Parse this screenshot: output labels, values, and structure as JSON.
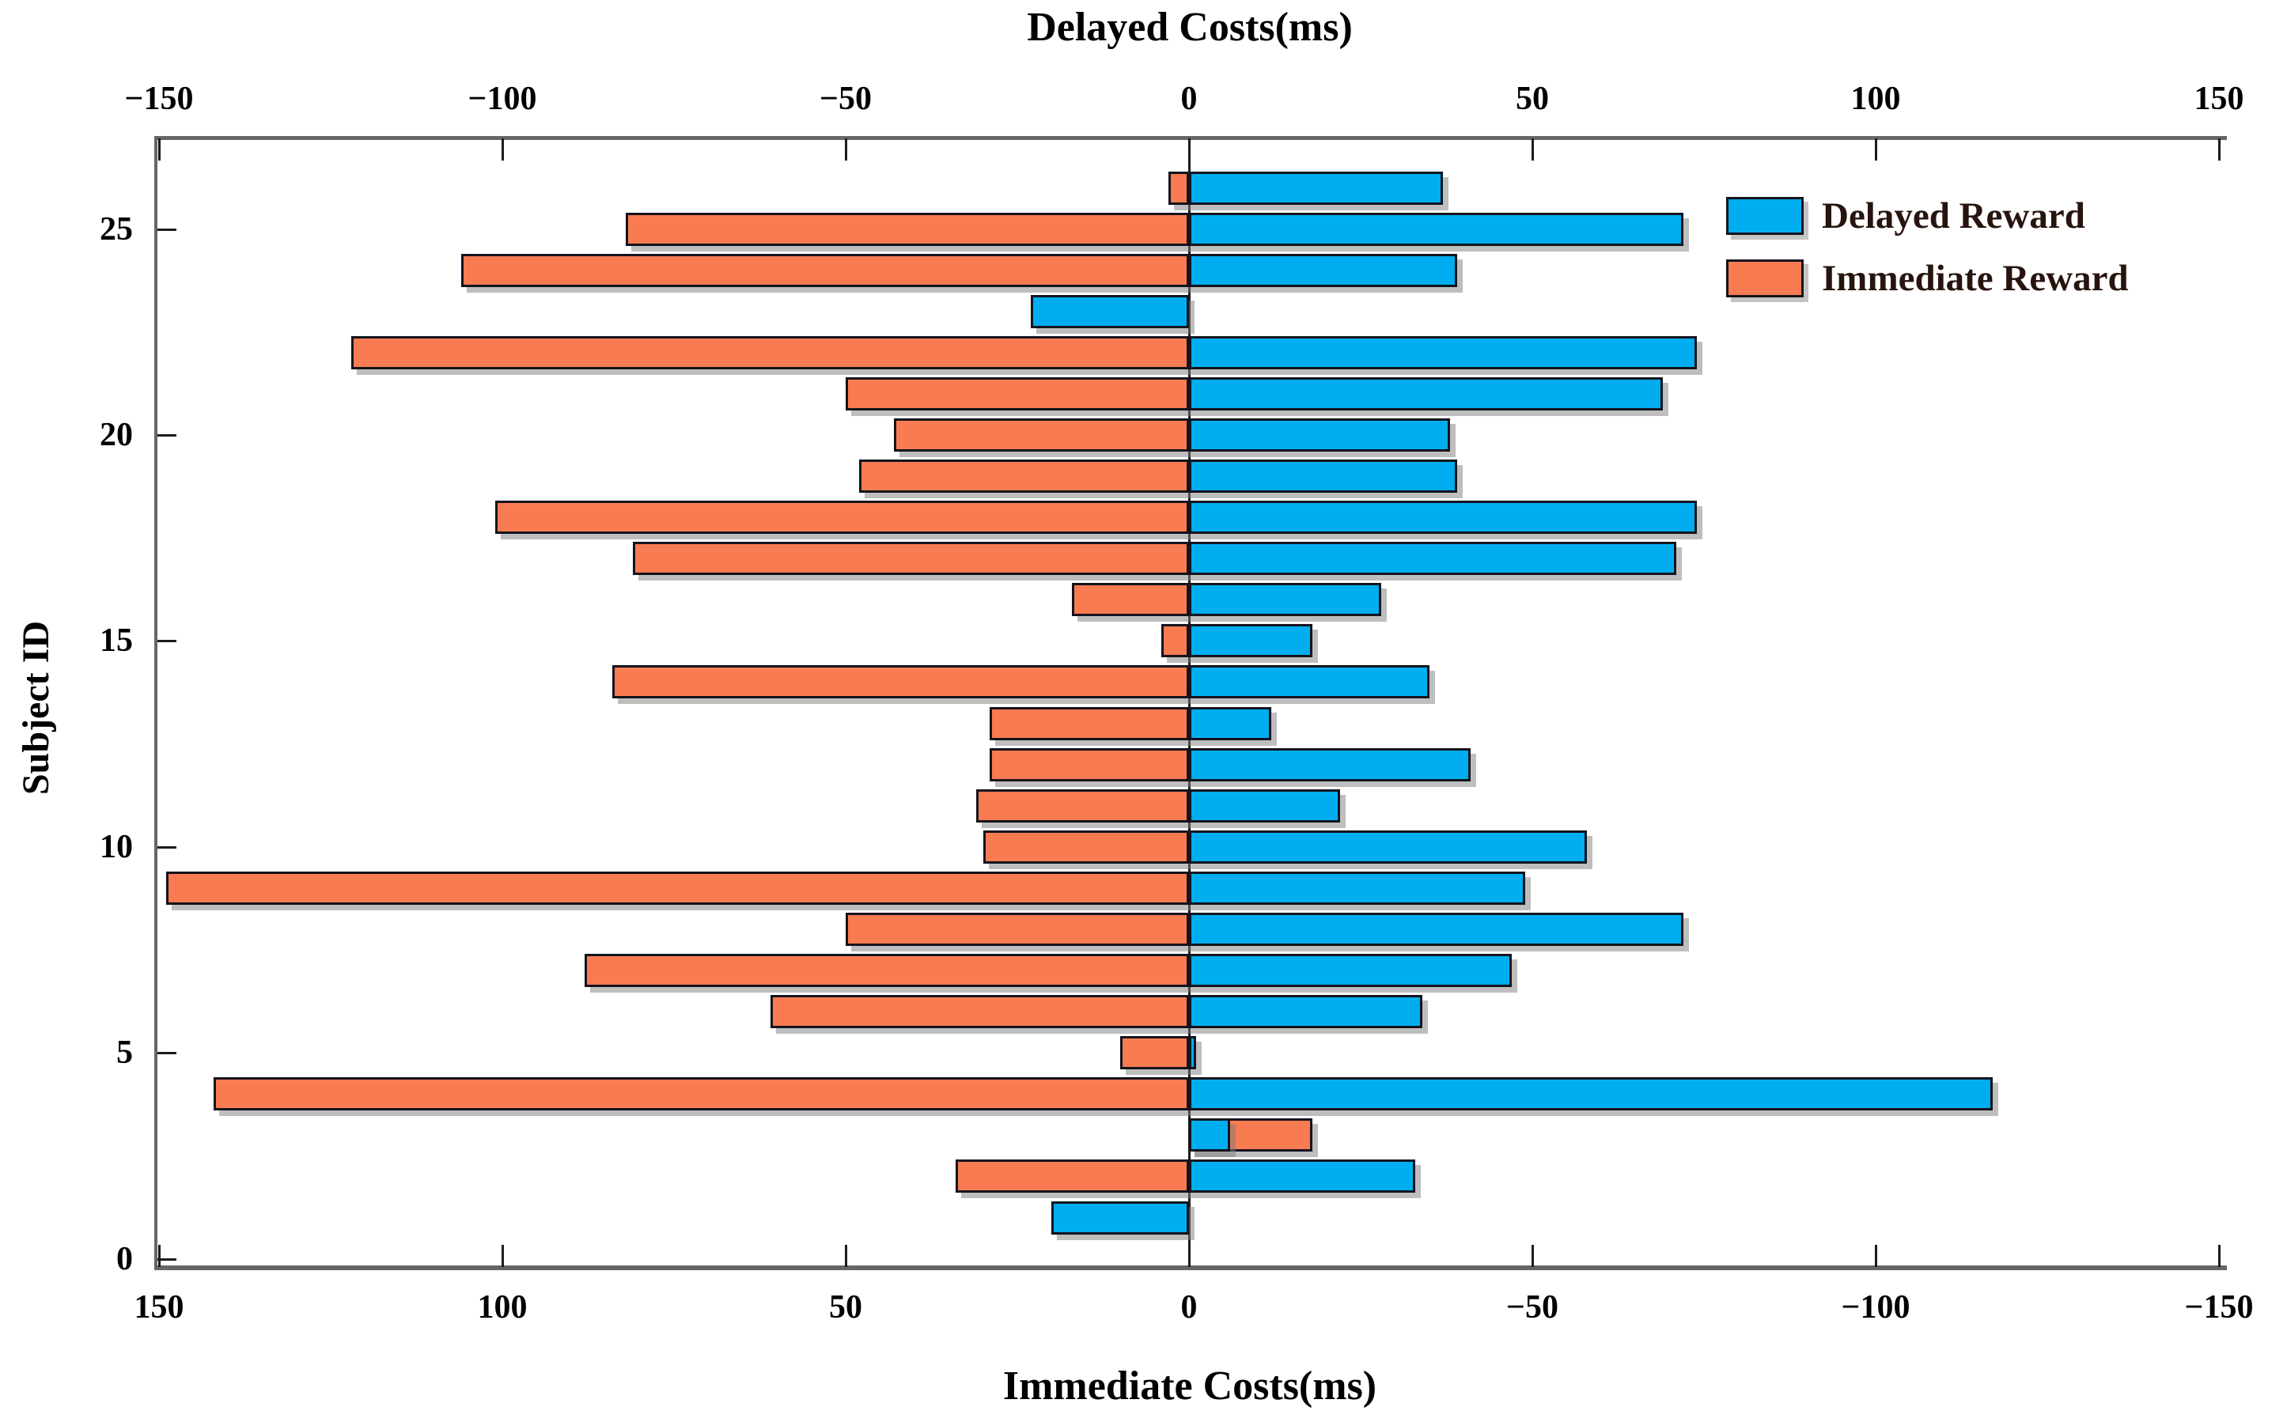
{
  "top_axis_title": "Delayed Costs(ms)",
  "bottom_axis_title": "Immediate Costs(ms)",
  "y_axis_title": "Subject ID",
  "legend": [
    {
      "label": "Delayed Reward",
      "series": "delayed"
    },
    {
      "label": "Immediate Reward",
      "series": "immediate"
    }
  ],
  "colors": {
    "delayed": "#00AEEF",
    "immediate": "#F97B51",
    "bar_outline": "#14141e",
    "axis_spine": "#666666",
    "tick_and_zero_line": "#1c1c1c",
    "legend_text": "#27140e",
    "axis_text": "#000000"
  },
  "axes": {
    "top_ticks": [
      {
        "value": -150,
        "label": "−150"
      },
      {
        "value": -100,
        "label": "−100"
      },
      {
        "value": -50,
        "label": "−50"
      },
      {
        "value": 0,
        "label": "0"
      },
      {
        "value": 50,
        "label": "50"
      },
      {
        "value": 100,
        "label": "100"
      },
      {
        "value": 150,
        "label": "150"
      }
    ],
    "bottom_ticks": [
      {
        "value": -150,
        "label": "150"
      },
      {
        "value": -100,
        "label": "100"
      },
      {
        "value": -50,
        "label": "50"
      },
      {
        "value": 0,
        "label": "0"
      },
      {
        "value": 50,
        "label": "−50"
      },
      {
        "value": 100,
        "label": "−100"
      },
      {
        "value": 150,
        "label": "−150"
      }
    ],
    "y_ticks": [
      {
        "value": 0,
        "label": "0"
      },
      {
        "value": 5,
        "label": "5"
      },
      {
        "value": 10,
        "label": "10"
      },
      {
        "value": 15,
        "label": "15"
      },
      {
        "value": 20,
        "label": "20"
      },
      {
        "value": 25,
        "label": "25"
      }
    ]
  },
  "chart_data": {
    "type": "bar",
    "orientation": "horizontal-diverging",
    "title": "",
    "xlabel_top": "Delayed Costs(ms)",
    "xlabel_bottom": "Immediate Costs(ms)",
    "ylabel": "Subject ID",
    "xlim_top_axis": [
      -150,
      150
    ],
    "ylim": [
      0,
      27.2
    ],
    "bar_height_units": 0.8,
    "grid": false,
    "legend_position": "upper-right-inside",
    "sign_convention": "delayed_cost_ms read on top axis (positive bars extend right); immediate_cost_ms read on reversed bottom axis (positive bars extend left of the zero line); values in ms, estimated from pixels",
    "series": [
      {
        "name": "Delayed Reward",
        "color": "#00AEEF"
      },
      {
        "name": "Immediate Reward",
        "color": "#F97B51"
      }
    ],
    "subjects": [
      {
        "id": 1,
        "delayed_cost_ms": -20,
        "immediate_cost_ms": 0
      },
      {
        "id": 2,
        "delayed_cost_ms": 33,
        "immediate_cost_ms": 34
      },
      {
        "id": 3,
        "delayed_cost_ms": 6,
        "immediate_cost_ms": -18
      },
      {
        "id": 4,
        "delayed_cost_ms": 117,
        "immediate_cost_ms": 142
      },
      {
        "id": 5,
        "delayed_cost_ms": 1,
        "immediate_cost_ms": 10
      },
      {
        "id": 6,
        "delayed_cost_ms": 34,
        "immediate_cost_ms": 61
      },
      {
        "id": 7,
        "delayed_cost_ms": 47,
        "immediate_cost_ms": 88
      },
      {
        "id": 8,
        "delayed_cost_ms": 72,
        "immediate_cost_ms": 50
      },
      {
        "id": 9,
        "delayed_cost_ms": 49,
        "immediate_cost_ms": 149
      },
      {
        "id": 10,
        "delayed_cost_ms": 58,
        "immediate_cost_ms": 30
      },
      {
        "id": 11,
        "delayed_cost_ms": 22,
        "immediate_cost_ms": 31
      },
      {
        "id": 12,
        "delayed_cost_ms": 41,
        "immediate_cost_ms": 29
      },
      {
        "id": 13,
        "delayed_cost_ms": 12,
        "immediate_cost_ms": 29
      },
      {
        "id": 14,
        "delayed_cost_ms": 35,
        "immediate_cost_ms": 84
      },
      {
        "id": 15,
        "delayed_cost_ms": 18,
        "immediate_cost_ms": 4
      },
      {
        "id": 16,
        "delayed_cost_ms": 28,
        "immediate_cost_ms": 17
      },
      {
        "id": 17,
        "delayed_cost_ms": 71,
        "immediate_cost_ms": 81
      },
      {
        "id": 18,
        "delayed_cost_ms": 74,
        "immediate_cost_ms": 101
      },
      {
        "id": 19,
        "delayed_cost_ms": 39,
        "immediate_cost_ms": 48
      },
      {
        "id": 20,
        "delayed_cost_ms": 38,
        "immediate_cost_ms": 43
      },
      {
        "id": 21,
        "delayed_cost_ms": 69,
        "immediate_cost_ms": 50
      },
      {
        "id": 22,
        "delayed_cost_ms": 74,
        "immediate_cost_ms": 122
      },
      {
        "id": 23,
        "delayed_cost_ms": -23,
        "immediate_cost_ms": 0
      },
      {
        "id": 24,
        "delayed_cost_ms": 39,
        "immediate_cost_ms": 106
      },
      {
        "id": 25,
        "delayed_cost_ms": 72,
        "immediate_cost_ms": 82
      },
      {
        "id": 26,
        "delayed_cost_ms": 37,
        "immediate_cost_ms": 3
      }
    ]
  }
}
